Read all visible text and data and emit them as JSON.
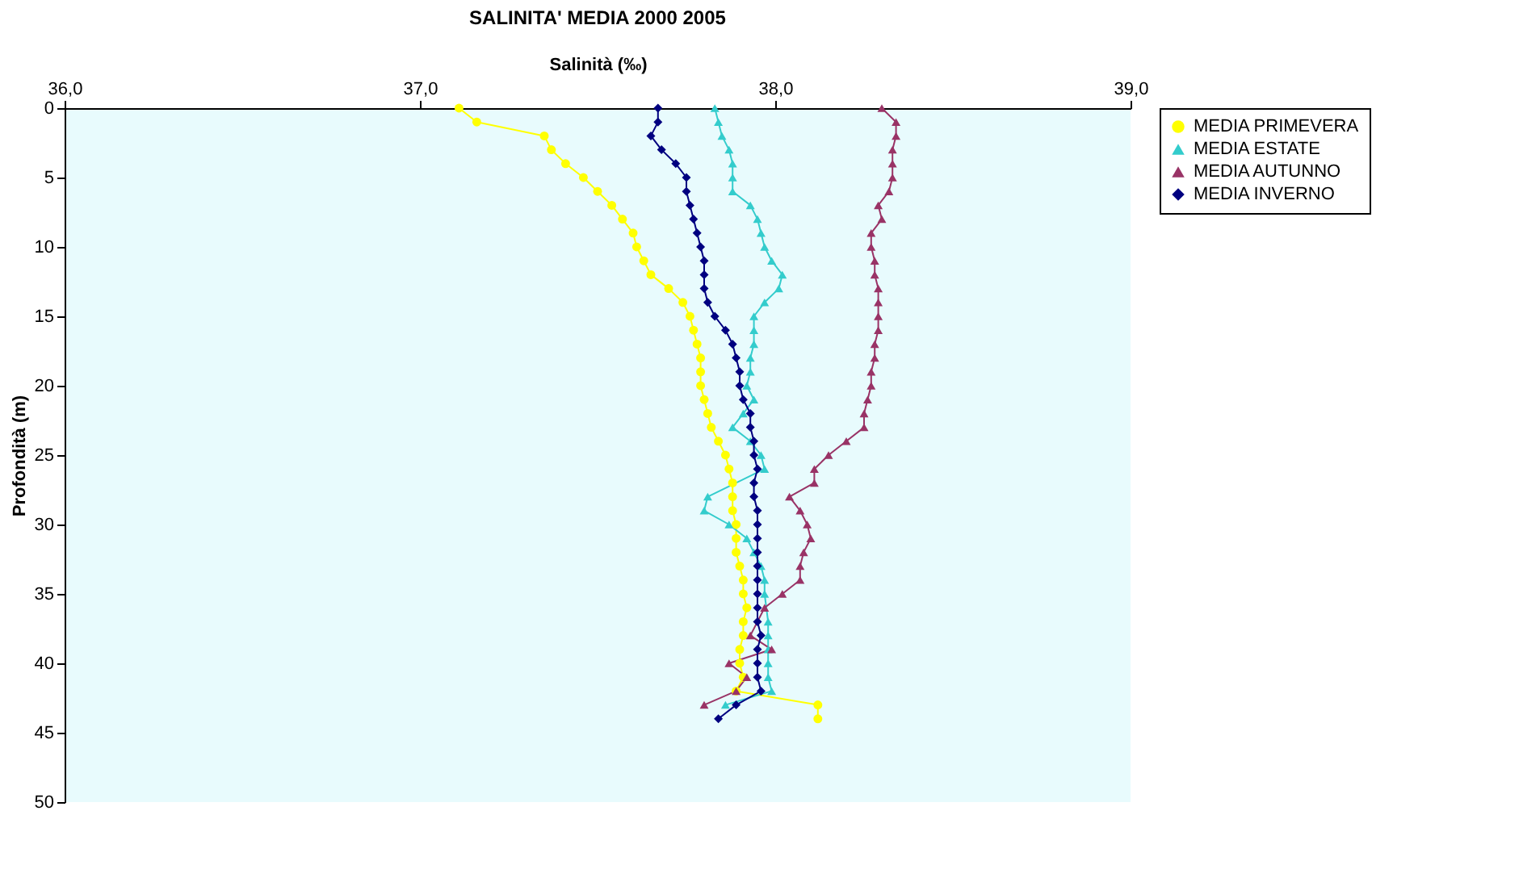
{
  "chart_data": {
    "type": "line",
    "title": "SALINITA' MEDIA 2000 2005",
    "xlabel": "Salinità (‰)",
    "ylabel": "Profondità (m)",
    "xlim": [
      36,
      39
    ],
    "xticks": [
      {
        "value": 36,
        "label": "36,0"
      },
      {
        "value": 37,
        "label": "37,0"
      },
      {
        "value": 38,
        "label": "38,0"
      },
      {
        "value": 39,
        "label": "39,0"
      }
    ],
    "ylim": [
      50,
      0
    ],
    "yticks": [
      0,
      5,
      10,
      15,
      20,
      25,
      30,
      35,
      40,
      45,
      50
    ],
    "grid": false,
    "legend": "right",
    "series": [
      {
        "name": "MEDIA PRIMEVERA",
        "color": "#ffff00",
        "marker": "circle",
        "x": [
          37.11,
          37.16,
          37.35,
          37.37,
          37.41,
          37.46,
          37.5,
          37.54,
          37.57,
          37.6,
          37.61,
          37.63,
          37.65,
          37.7,
          37.74,
          37.76,
          37.77,
          37.78,
          37.79,
          37.79,
          37.79,
          37.8,
          37.81,
          37.82,
          37.84,
          37.86,
          37.87,
          37.88,
          37.88,
          37.88,
          37.89,
          37.89,
          37.89,
          37.9,
          37.91,
          37.91,
          37.92,
          37.91,
          37.91,
          37.9,
          37.9,
          37.91,
          37.89,
          38.12,
          38.12
        ],
        "values": [
          0,
          1,
          2,
          3,
          4,
          5,
          6,
          7,
          8,
          9,
          10,
          11,
          12,
          13,
          14,
          15,
          16,
          17,
          18,
          19,
          20,
          21,
          22,
          23,
          24,
          25,
          26,
          27,
          28,
          29,
          30,
          31,
          32,
          33,
          34,
          35,
          36,
          37,
          38,
          39,
          40,
          41,
          42,
          43,
          44
        ]
      },
      {
        "name": "MEDIA ESTATE",
        "color": "#33cccc",
        "marker": "triangle",
        "x": [
          37.83,
          37.84,
          37.85,
          37.87,
          37.88,
          37.88,
          37.88,
          37.93,
          37.95,
          37.96,
          37.97,
          37.99,
          38.02,
          38.01,
          37.97,
          37.94,
          37.94,
          37.94,
          37.93,
          37.93,
          37.92,
          37.94,
          37.91,
          37.88,
          37.93,
          37.96,
          37.97,
          null,
          37.81,
          37.8,
          37.87,
          37.92,
          37.94,
          37.96,
          37.97,
          37.97,
          null,
          37.98,
          37.98,
          37.98,
          37.98,
          37.98,
          37.99,
          37.86
        ],
        "values": [
          0,
          1,
          2,
          3,
          4,
          5,
          6,
          7,
          8,
          9,
          10,
          11,
          12,
          13,
          14,
          15,
          16,
          17,
          18,
          19,
          20,
          21,
          22,
          23,
          24,
          25,
          26,
          null,
          28,
          29,
          30,
          31,
          32,
          33,
          34,
          35,
          null,
          37,
          38,
          39,
          40,
          41,
          42,
          43
        ]
      },
      {
        "name": "MEDIA AUTUNNO",
        "color": "#993366",
        "marker": "triangle",
        "x": [
          38.3,
          38.34,
          38.34,
          38.33,
          38.33,
          38.33,
          38.32,
          38.29,
          38.3,
          38.27,
          38.27,
          38.28,
          38.28,
          38.29,
          38.29,
          38.29,
          38.29,
          38.28,
          38.28,
          38.27,
          38.27,
          38.26,
          38.25,
          38.25,
          38.2,
          38.15,
          38.11,
          38.11,
          38.04,
          38.07,
          38.09,
          38.1,
          38.08,
          38.07,
          38.07,
          38.02,
          37.97,
          null,
          37.93,
          37.99,
          37.87,
          37.92,
          37.89,
          37.8
        ],
        "values": [
          0,
          1,
          2,
          3,
          4,
          5,
          6,
          7,
          8,
          9,
          10,
          11,
          12,
          13,
          14,
          15,
          16,
          17,
          18,
          19,
          20,
          21,
          22,
          23,
          24,
          25,
          26,
          27,
          28,
          29,
          30,
          31,
          32,
          33,
          34,
          35,
          36,
          null,
          38,
          39,
          40,
          41,
          42,
          43
        ]
      },
      {
        "name": "MEDIA INVERNO",
        "color": "#000080",
        "marker": "diamond",
        "x": [
          37.67,
          37.67,
          37.65,
          37.68,
          37.72,
          37.75,
          37.75,
          37.76,
          37.77,
          37.78,
          37.79,
          37.8,
          37.8,
          37.8,
          37.81,
          37.83,
          37.86,
          37.88,
          37.89,
          37.9,
          37.9,
          37.91,
          37.93,
          37.93,
          37.94,
          37.94,
          37.95,
          37.94,
          37.94,
          37.95,
          37.95,
          37.95,
          37.95,
          37.95,
          37.95,
          37.95,
          37.95,
          37.95,
          37.96,
          37.95,
          37.95,
          37.95,
          37.96,
          37.89,
          37.84
        ],
        "values": [
          0,
          1,
          2,
          3,
          4,
          5,
          6,
          7,
          8,
          9,
          10,
          11,
          12,
          13,
          14,
          15,
          16,
          17,
          18,
          19,
          20,
          21,
          22,
          23,
          24,
          25,
          26,
          27,
          28,
          29,
          30,
          31,
          32,
          33,
          34,
          35,
          36,
          37,
          38,
          39,
          40,
          41,
          42,
          43,
          44
        ]
      }
    ]
  }
}
